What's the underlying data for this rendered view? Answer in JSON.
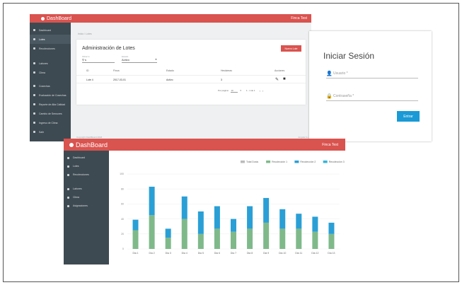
{
  "app": {
    "brand": "DashBoard",
    "user": "Finca Test"
  },
  "sidebar": {
    "items": [
      {
        "label": "Dashboard",
        "icon": "home-icon"
      },
      {
        "label": "Lotes",
        "icon": "cloud-icon"
      },
      {
        "label": "Recolecciones",
        "icon": "grid-icon"
      },
      {
        "label": "Labores",
        "icon": "tool-icon"
      },
      {
        "label": "Clima",
        "icon": "cloud-icon"
      },
      {
        "label": "Cosechas",
        "icon": "box-icon"
      },
      {
        "label": "Evaluación de Cosechas",
        "icon": "check-icon"
      },
      {
        "label": "Reporte de Alta Calidad",
        "icon": "report-icon"
      },
      {
        "label": "Cambio de Sensores",
        "icon": "sensor-icon"
      },
      {
        "label": "Ingreso de Clima",
        "icon": "upload-icon"
      },
      {
        "label": "Salir",
        "icon": "logout-icon"
      }
    ]
  },
  "lotes": {
    "breadcrumb": "Inicio / Lotes",
    "title": "Administración de Lotes",
    "new_button": "Nuevo Lote",
    "search_label": "Filtrar lo",
    "search_value": "s",
    "status_label": "Estado",
    "status_value": "Activo",
    "columns": [
      "ID",
      "Finca",
      "Estado",
      "Hectáreas",
      "Acciones"
    ],
    "rows": [
      {
        "id": "Lote 4",
        "finca": "2017-03-01",
        "estado": "Activo",
        "hectareas": "3"
      }
    ],
    "per_page_label": "Por página:",
    "per_page_value": "10",
    "range": "1 - 1 de 1",
    "footer_left": "Copyright DashBoard 2018",
    "footer_right": "Angular 2+"
  },
  "login": {
    "title": "Iniciar Sesión",
    "user_placeholder": "Usuario *",
    "password_placeholder": "Contraseña *",
    "submit": "Entrar"
  },
  "dashboard": {
    "sidebar_items": [
      {
        "label": "Dashboard",
        "icon": "home-icon"
      },
      {
        "label": "Lotes",
        "icon": "cloud-icon"
      },
      {
        "label": "Recolecciones",
        "icon": "grid-icon"
      },
      {
        "label": "Labores",
        "icon": "tool-icon"
      },
      {
        "label": "Clima",
        "icon": "cloud-icon"
      },
      {
        "label": "Asignaciones",
        "icon": "assign-icon"
      }
    ]
  },
  "chart_data": {
    "type": "bar",
    "categories": [
      "Dia 1",
      "Dia 2",
      "Dia 3",
      "Dia 4",
      "Dia 5",
      "Dia 6",
      "Dia 7",
      "Dia 8",
      "Dia 9",
      "Dia 10",
      "Dia 11",
      "Dia 12",
      "Dia 13"
    ],
    "series": [
      {
        "name": "Recolección 1",
        "values": [
          25,
          45,
          15,
          40,
          20,
          27,
          23,
          27,
          35,
          27,
          27,
          23,
          20
        ],
        "color": "#7fb98a"
      },
      {
        "name": "Recolección 2",
        "values": [
          14,
          38,
          12,
          30,
          30,
          30,
          17,
          30,
          33,
          26,
          20,
          20,
          15
        ],
        "color": "#2a9fd6"
      }
    ],
    "legend": [
      "Total Dosis",
      "Recolección 1",
      "Recolección 2",
      "Recolección 3"
    ],
    "legend_colors": [
      "#bbbbbb",
      "#7fb98a",
      "#2a9fd6",
      "#35b5d9"
    ],
    "ylim": [
      0,
      100
    ],
    "yticks": [
      0,
      20,
      40,
      60,
      80,
      100
    ],
    "legend_position": "top-right"
  }
}
